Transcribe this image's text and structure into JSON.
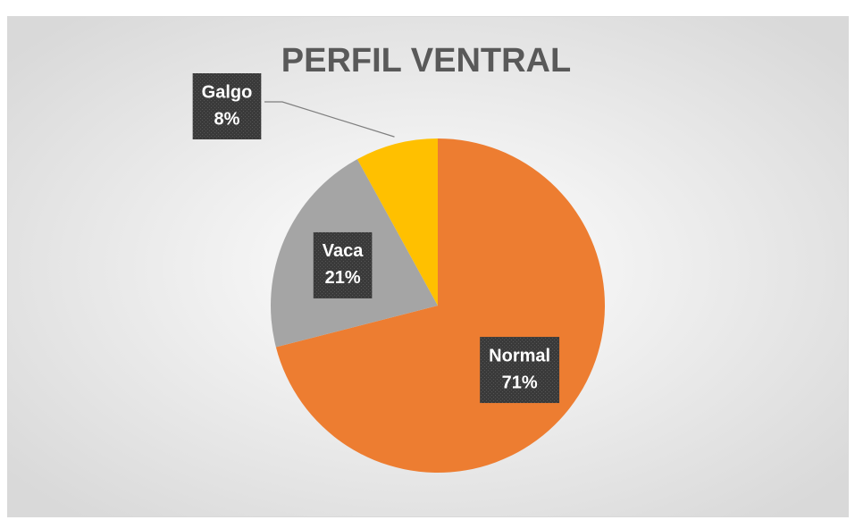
{
  "chart_data": {
    "type": "pie",
    "title": "PERFIL VENTRAL",
    "categories": [
      "Normal",
      "Vaca",
      "Galgo"
    ],
    "values": [
      71,
      21,
      8
    ],
    "value_labels": [
      "71%",
      "21%",
      "8%"
    ],
    "colors": [
      "#ED7D31",
      "#A5A5A5",
      "#FFC000"
    ]
  }
}
